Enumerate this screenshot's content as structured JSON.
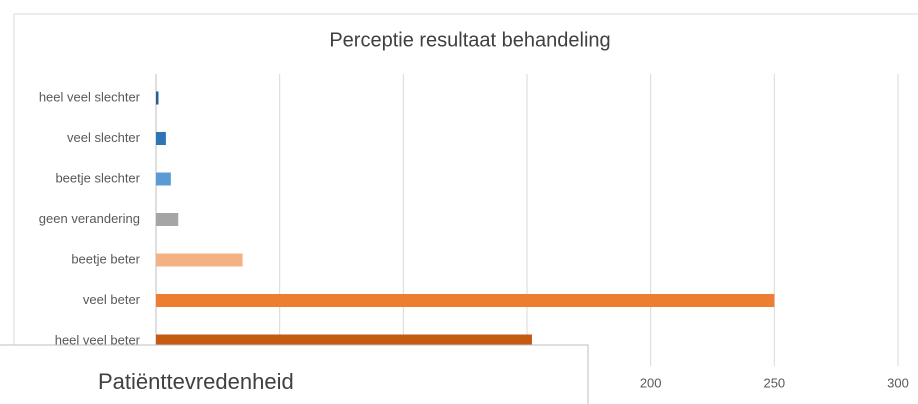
{
  "chart_data": {
    "type": "barh",
    "title": "Perceptie resultaat behandeling",
    "categories": [
      "heel veel slechter",
      "veel slechter",
      "beetje slechter",
      "geen verandering",
      "beetje beter",
      "veel beter",
      "heel veel beter"
    ],
    "values": [
      1,
      4,
      6,
      9,
      35,
      250,
      152
    ],
    "colors": [
      "#255e91",
      "#2e75b6",
      "#5b9bd5",
      "#a5a5a5",
      "#f4b183",
      "#ed7d31",
      "#c55a11"
    ],
    "xlim": [
      0,
      300
    ],
    "xticks": [
      0,
      50,
      100,
      150,
      200,
      250,
      300
    ],
    "grid": true
  },
  "covering_chart": {
    "title": "Patiënttevredenheid"
  }
}
